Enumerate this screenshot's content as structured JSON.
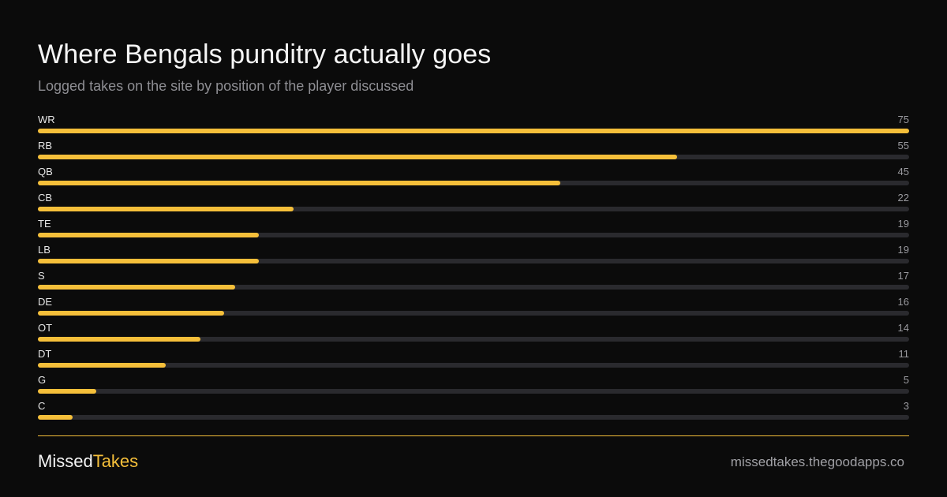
{
  "header": {
    "title": "Where Bengals punditry actually goes",
    "subtitle": "Logged takes on the site by position of the player discussed"
  },
  "chart_data": {
    "type": "bar",
    "orientation": "horizontal",
    "title": "Where Bengals punditry actually goes",
    "subtitle": "Logged takes on the site by position of the player discussed",
    "xlabel": "",
    "ylabel": "",
    "xlim": [
      0,
      75
    ],
    "grid": false,
    "legend": "none",
    "categories": [
      "WR",
      "RB",
      "QB",
      "CB",
      "TE",
      "LB",
      "S",
      "DE",
      "OT",
      "DT",
      "G",
      "C"
    ],
    "values": [
      75,
      55,
      45,
      22,
      19,
      19,
      17,
      16,
      14,
      11,
      5,
      3
    ],
    "bar_color": "#f5bf3a",
    "track_color": "#2a2a2e"
  },
  "footer": {
    "brand_part1": "Missed",
    "brand_part2": "Takes",
    "url": "missedtakes.thegoodapps.co"
  },
  "colors": {
    "background": "#0b0b0b",
    "accent": "#f5bf3a",
    "muted_text": "#8e8e93"
  }
}
